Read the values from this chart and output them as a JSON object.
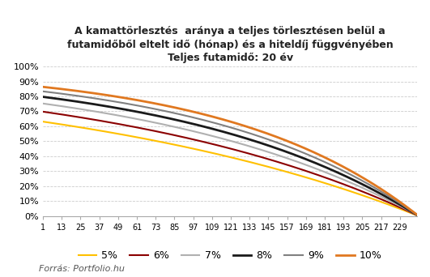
{
  "title_line1": "A kamattörlesztés  aránya a teljes törlesztésen belül a",
  "title_line2_main": "futamidőből eltelt idő ",
  "title_line2_small": "(hónap)",
  "title_line2_end": " és a hiteldíj függvényében",
  "title_line3_bold": "Teljes futamidő: ",
  "title_line3_normal": "20 év",
  "source": "Forrás: Portfolio.hu",
  "rates": [
    0.05,
    0.06,
    0.07,
    0.08,
    0.09,
    0.1
  ],
  "rate_labels": [
    "5%",
    "6%",
    "7%",
    "8%",
    "9%",
    "10%"
  ],
  "colors": [
    "#FFC000",
    "#8B0000",
    "#B0B0B0",
    "#1A1A1A",
    "#808080",
    "#E07820"
  ],
  "linewidths": [
    1.5,
    1.5,
    1.5,
    2.0,
    1.5,
    2.0
  ],
  "total_months": 240,
  "xtick_positions": [
    1,
    13,
    25,
    37,
    49,
    61,
    73,
    85,
    97,
    109,
    121,
    133,
    145,
    157,
    169,
    181,
    193,
    205,
    217,
    229
  ],
  "xtick_labels": [
    "1",
    "13",
    "25",
    "37",
    "49",
    "61",
    "73",
    "85",
    "97",
    "109",
    "121",
    "133",
    "145",
    "157",
    "169",
    "181",
    "193",
    "205",
    "217",
    "229"
  ],
  "ytick_positions": [
    0,
    0.1,
    0.2,
    0.3,
    0.4,
    0.5,
    0.6,
    0.7,
    0.8,
    0.9,
    1.0
  ],
  "ytick_labels": [
    "0%",
    "10%",
    "20%",
    "30%",
    "40%",
    "50%",
    "60%",
    "70%",
    "80%",
    "90%",
    "100%"
  ],
  "background_color": "#FFFFFF",
  "grid_color": "#CCCCCC"
}
